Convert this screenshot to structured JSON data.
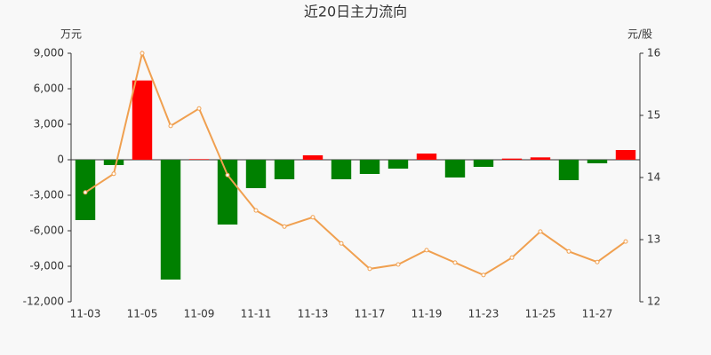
{
  "chart_data": {
    "type": "bar",
    "title": "近20日主力流向",
    "y_unit": "万元",
    "y2_unit": "元/股",
    "categories": [
      "11-03",
      null,
      "11-05",
      null,
      "11-09",
      null,
      "11-11",
      null,
      "11-13",
      null,
      "11-17",
      null,
      "11-19",
      null,
      "11-23",
      null,
      "11-25",
      null,
      "11-27",
      null
    ],
    "series": [
      {
        "type": "bar",
        "color_up": "#ff0000",
        "color_down": "#008000",
        "values": [
          -5100,
          -450,
          6700,
          -10125,
          50,
          -5475,
          -2400,
          -1650,
          375,
          -1650,
          -1200,
          -750,
          525,
          -1500,
          -600,
          100,
          200,
          -1725,
          -300,
          825
        ]
      },
      {
        "type": "line",
        "axis": "y2",
        "color": "#f0a050",
        "values": [
          13.76,
          14.06,
          16.0,
          14.83,
          15.11,
          14.04,
          13.47,
          13.21,
          13.36,
          12.94,
          12.53,
          12.6,
          12.83,
          12.63,
          12.43,
          12.71,
          13.13,
          12.81,
          12.64,
          12.97
        ]
      }
    ],
    "ylim": [
      -12000,
      9000
    ],
    "yticks": [
      {
        "value": -12000,
        "label": "-12,000"
      },
      {
        "value": -9000,
        "label": "-9,000"
      },
      {
        "value": -6000,
        "label": "-6,000"
      },
      {
        "value": -3000,
        "label": "-3,000"
      },
      0,
      {
        "value": 3000,
        "label": "3,000"
      },
      {
        "value": 6000,
        "label": "6,000"
      },
      {
        "value": 9000,
        "label": "9,000"
      }
    ],
    "y2lim": [
      12,
      16
    ],
    "y2ticks": [
      12,
      13,
      14,
      15,
      16
    ]
  }
}
